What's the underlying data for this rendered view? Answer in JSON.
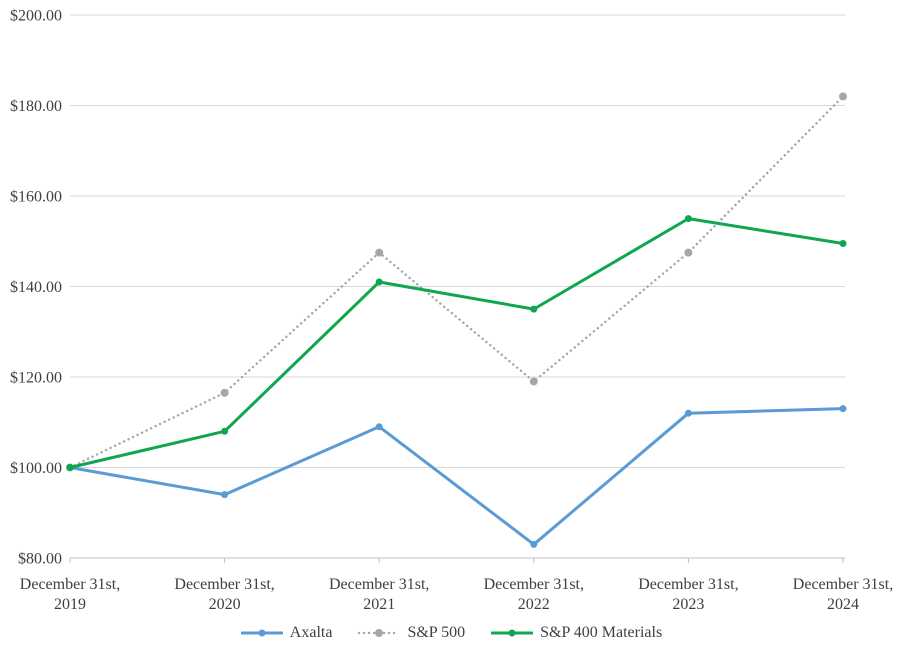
{
  "chart_data": {
    "type": "line",
    "title": "",
    "xlabel": "",
    "ylabel": "",
    "categories": [
      [
        "December 31st,",
        "2019"
      ],
      [
        "December 31st,",
        "2020"
      ],
      [
        "December 31st,",
        "2021"
      ],
      [
        "December 31st,",
        "2022"
      ],
      [
        "December 31st,",
        "2023"
      ],
      [
        "December 31st,",
        "2024"
      ]
    ],
    "series": [
      {
        "name": "Axalta",
        "color": "#5B9BD5",
        "line_style": "solid",
        "marker": "circle",
        "values": [
          100,
          94,
          109,
          83,
          112,
          113
        ]
      },
      {
        "name": "S&P 500",
        "color": "#A6A6A6",
        "line_style": "dotted",
        "marker": "circle",
        "values": [
          100,
          116.5,
          147.5,
          119,
          147.5,
          182
        ]
      },
      {
        "name": "S&P 400 Materials",
        "color": "#0FA64F",
        "line_style": "solid",
        "marker": "circle",
        "values": [
          100,
          108,
          141,
          135,
          155,
          149.5
        ]
      }
    ],
    "ylim": [
      80,
      200
    ],
    "y_ticks": [
      80,
      100,
      120,
      140,
      160,
      180,
      200
    ],
    "y_tick_labels": [
      "$80.00",
      "$100.00",
      "$120.00",
      "$140.00",
      "$160.00",
      "$180.00",
      "$200.00"
    ],
    "grid": true,
    "legend_position": "bottom",
    "colors": {
      "background": "#FFFFFF",
      "gridline": "#D9D9D9",
      "axis_line": "#BFBFBF",
      "text": "#3F3F3F"
    }
  }
}
